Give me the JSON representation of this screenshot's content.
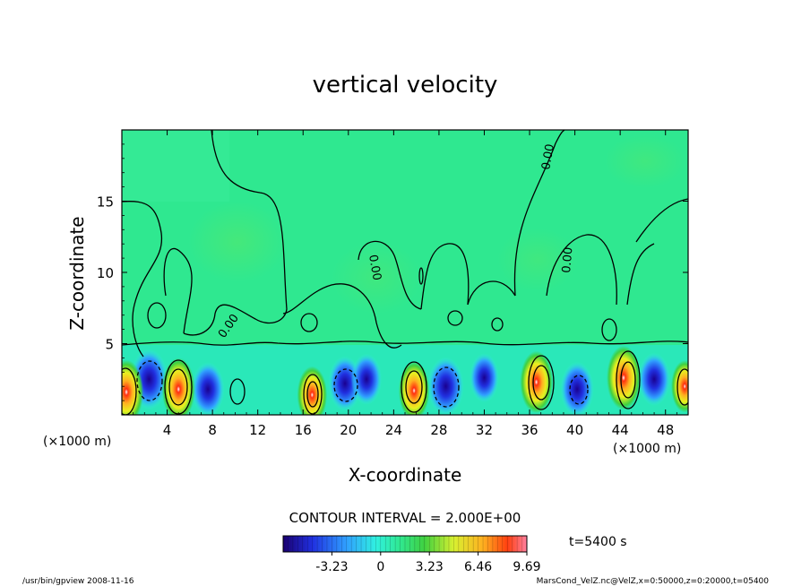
{
  "chart_data": {
    "type": "heatmap",
    "title": "vertical velocity",
    "xlabel": "X-coordinate",
    "ylabel": "Z-coordinate",
    "x_unit_left": "(×1000 m)",
    "x_unit_right": "(×1000 m)",
    "xlim": [
      0,
      50
    ],
    "ylim": [
      0,
      20
    ],
    "x_ticks": [
      4,
      8,
      12,
      16,
      20,
      24,
      28,
      32,
      36,
      40,
      44,
      48
    ],
    "y_ticks": [
      5,
      10,
      15
    ],
    "contour_interval_text": "CONTOUR INTERVAL = 2.000E+00",
    "contour_labels": [
      "0.00",
      "0.00",
      "0.00",
      "0.00"
    ],
    "colorbar": {
      "ticks": [
        "-3.23",
        "0",
        "3.23",
        "6.46",
        "9.69"
      ],
      "range": [
        -6.46,
        9.69
      ]
    },
    "time_label": "t=5400 s",
    "updrafts": [
      {
        "x": 0.4,
        "z": 1.6,
        "w": 9.7
      },
      {
        "x": 5.0,
        "z": 1.8,
        "w": 9.2
      },
      {
        "x": 16.8,
        "z": 1.4,
        "w": 7.5
      },
      {
        "x": 25.8,
        "z": 1.7,
        "w": 8.0
      },
      {
        "x": 36.6,
        "z": 2.3,
        "w": 9.0
      },
      {
        "x": 44.3,
        "z": 2.6,
        "w": 9.6
      },
      {
        "x": 49.7,
        "z": 2.0,
        "w": 6.0
      }
    ],
    "downdrafts": [
      {
        "x": 2.4,
        "z": 2.5,
        "w": -6.5
      },
      {
        "x": 7.6,
        "z": 1.8,
        "w": -4.8
      },
      {
        "x": 19.7,
        "z": 2.2,
        "w": -5.0
      },
      {
        "x": 21.6,
        "z": 2.5,
        "w": -4.0
      },
      {
        "x": 28.6,
        "z": 2.0,
        "w": -6.0
      },
      {
        "x": 32.0,
        "z": 2.6,
        "w": -3.5
      },
      {
        "x": 40.2,
        "z": 1.8,
        "w": -5.0
      },
      {
        "x": 47.0,
        "z": 2.5,
        "w": -4.5
      }
    ]
  },
  "footer": {
    "left": "/usr/bin/gpview   2008-11-16",
    "right": "MarsCond_VelZ.nc@VelZ,x=0:50000,z=0:20000,t=05400"
  },
  "colors": {
    "background": "#2fe890",
    "strong_up": "#ff2a00",
    "strong_down": "#1a00a0"
  }
}
